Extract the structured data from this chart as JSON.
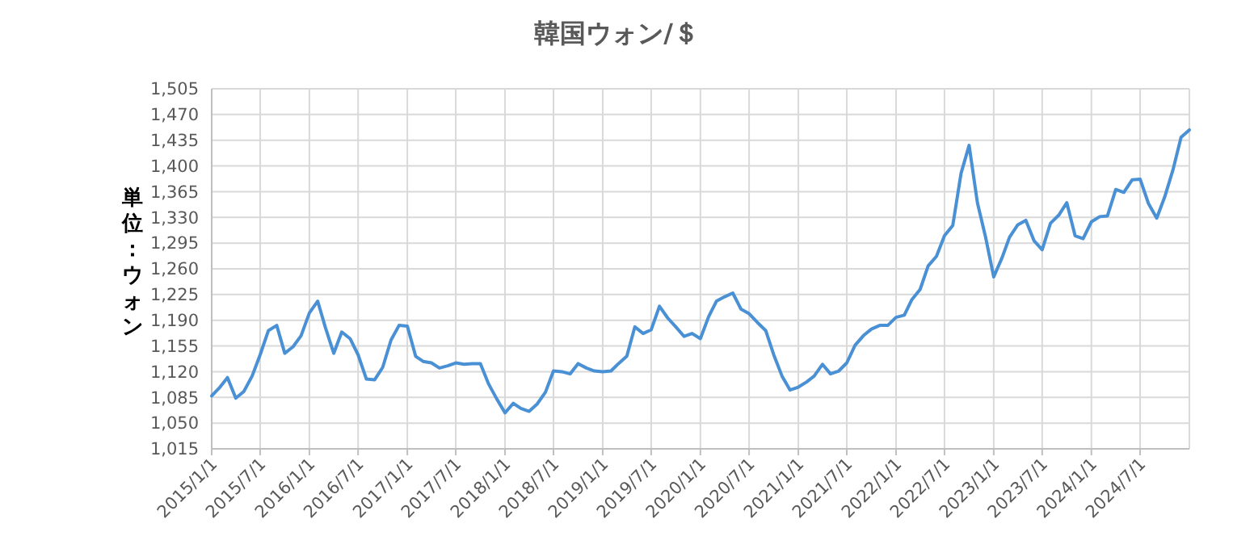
{
  "chart_data": {
    "type": "line",
    "title": "韓国ウォン/＄",
    "ylabel": "単位：ウォン",
    "x": [
      "2015-01",
      "2015-02",
      "2015-03",
      "2015-04",
      "2015-05",
      "2015-06",
      "2015-07",
      "2015-08",
      "2015-09",
      "2015-10",
      "2015-11",
      "2015-12",
      "2016-01",
      "2016-02",
      "2016-03",
      "2016-04",
      "2016-05",
      "2016-06",
      "2016-07",
      "2016-08",
      "2016-09",
      "2016-10",
      "2016-11",
      "2016-12",
      "2017-01",
      "2017-02",
      "2017-03",
      "2017-04",
      "2017-05",
      "2017-06",
      "2017-07",
      "2017-08",
      "2017-09",
      "2017-10",
      "2017-11",
      "2017-12",
      "2018-01",
      "2018-02",
      "2018-03",
      "2018-04",
      "2018-05",
      "2018-06",
      "2018-07",
      "2018-08",
      "2018-09",
      "2018-10",
      "2018-11",
      "2018-12",
      "2019-01",
      "2019-02",
      "2019-03",
      "2019-04",
      "2019-05",
      "2019-06",
      "2019-07",
      "2019-08",
      "2019-09",
      "2019-10",
      "2019-11",
      "2019-12",
      "2020-01",
      "2020-02",
      "2020-03",
      "2020-04",
      "2020-05",
      "2020-06",
      "2020-07",
      "2020-08",
      "2020-09",
      "2020-10",
      "2020-11",
      "2020-12",
      "2021-01",
      "2021-02",
      "2021-03",
      "2021-04",
      "2021-05",
      "2021-06",
      "2021-07",
      "2021-08",
      "2021-09",
      "2021-10",
      "2021-11",
      "2021-12",
      "2022-01",
      "2022-02",
      "2022-03",
      "2022-04",
      "2022-05",
      "2022-06",
      "2022-07",
      "2022-08",
      "2022-09",
      "2022-10",
      "2022-11",
      "2022-12",
      "2023-01",
      "2023-02",
      "2023-03",
      "2023-04",
      "2023-05",
      "2023-06",
      "2023-07",
      "2023-08",
      "2023-09",
      "2023-10",
      "2023-11",
      "2023-12",
      "2024-01",
      "2024-02",
      "2024-03",
      "2024-04",
      "2024-05",
      "2024-06",
      "2024-07",
      "2024-08",
      "2024-09",
      "2024-10",
      "2024-11",
      "2024-12",
      "2025-01"
    ],
    "series": [
      {
        "color": "#4a90d4",
        "values": [
          1087,
          1099,
          1112,
          1084,
          1093,
          1114,
          1143,
          1176,
          1183,
          1145,
          1154,
          1169,
          1200,
          1216,
          1180,
          1145,
          1174,
          1165,
          1143,
          1110,
          1109,
          1126,
          1163,
          1183,
          1182,
          1141,
          1134,
          1132,
          1125,
          1128,
          1132,
          1130,
          1131,
          1131,
          1103,
          1083,
          1064,
          1077,
          1070,
          1066,
          1076,
          1092,
          1121,
          1120,
          1117,
          1131,
          1125,
          1121,
          1120,
          1121,
          1131,
          1141,
          1181,
          1172,
          1177,
          1209,
          1193,
          1181,
          1168,
          1172,
          1165,
          1195,
          1216,
          1222,
          1227,
          1205,
          1199,
          1187,
          1176,
          1143,
          1114,
          1095,
          1099,
          1106,
          1114,
          1130,
          1117,
          1121,
          1132,
          1156,
          1169,
          1178,
          1183,
          1183,
          1194,
          1197,
          1218,
          1232,
          1264,
          1277,
          1305,
          1319,
          1390,
          1428,
          1350,
          1304,
          1249,
          1275,
          1303,
          1320,
          1326,
          1298,
          1286,
          1322,
          1333,
          1350,
          1305,
          1301,
          1324,
          1331,
          1332,
          1368,
          1364,
          1381,
          1382,
          1349,
          1329,
          1358,
          1395,
          1439,
          1449
        ]
      }
    ],
    "xlim": [
      "2015-01",
      "2025-01"
    ],
    "xticks": [
      {
        "value": "2015-01",
        "label": "2015/1/1"
      },
      {
        "value": "2015-07",
        "label": "2015/7/1"
      },
      {
        "value": "2016-01",
        "label": "2016/1/1"
      },
      {
        "value": "2016-07",
        "label": "2016/7/1"
      },
      {
        "value": "2017-01",
        "label": "2017/1/1"
      },
      {
        "value": "2017-07",
        "label": "2017/7/1"
      },
      {
        "value": "2018-01",
        "label": "2018/1/1"
      },
      {
        "value": "2018-07",
        "label": "2018/7/1"
      },
      {
        "value": "2019-01",
        "label": "2019/1/1"
      },
      {
        "value": "2019-07",
        "label": "2019/7/1"
      },
      {
        "value": "2020-01",
        "label": "2020/1/1"
      },
      {
        "value": "2020-07",
        "label": "2020/7/1"
      },
      {
        "value": "2021-01",
        "label": "2021/1/1"
      },
      {
        "value": "2021-07",
        "label": "2021/7/1"
      },
      {
        "value": "2022-01",
        "label": "2022/1/1"
      },
      {
        "value": "2022-07",
        "label": "2022/7/1"
      },
      {
        "value": "2023-01",
        "label": "2023/1/1"
      },
      {
        "value": "2023-07",
        "label": "2023/7/1"
      },
      {
        "value": "2024-01",
        "label": "2024/1/1"
      },
      {
        "value": "2024-07",
        "label": "2024/7/1"
      }
    ],
    "ylim": [
      1015,
      1505
    ],
    "yticks": [
      {
        "value": 1015,
        "label": "1,015"
      },
      {
        "value": 1050,
        "label": "1,050"
      },
      {
        "value": 1085,
        "label": "1,085"
      },
      {
        "value": 1120,
        "label": "1,120"
      },
      {
        "value": 1155,
        "label": "1,155"
      },
      {
        "value": 1190,
        "label": "1,190"
      },
      {
        "value": 1225,
        "label": "1,225"
      },
      {
        "value": 1260,
        "label": "1,260"
      },
      {
        "value": 1295,
        "label": "1,295"
      },
      {
        "value": 1330,
        "label": "1,330"
      },
      {
        "value": 1365,
        "label": "1,365"
      },
      {
        "value": 1400,
        "label": "1,400"
      },
      {
        "value": 1435,
        "label": "1,435"
      },
      {
        "value": 1470,
        "label": "1,470"
      },
      {
        "value": 1505,
        "label": "1,505"
      }
    ],
    "grid": true,
    "marker": "none",
    "line_style": "solid"
  }
}
